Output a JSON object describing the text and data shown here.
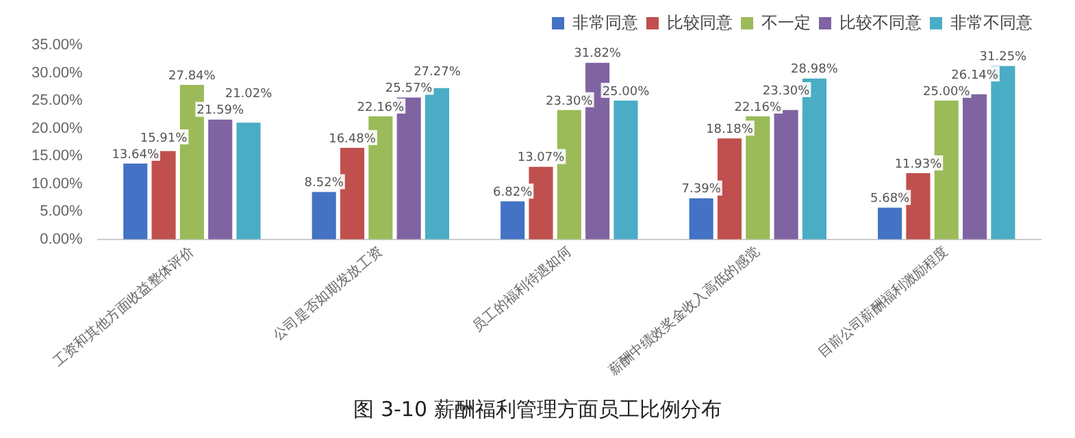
{
  "chart_data": {
    "type": "bar",
    "title": "图 3-10 薪酬福利管理方面员工比例分布",
    "categories": [
      "工资和其他方面收益整体评价",
      "公司是否如期发放工资",
      "员工的福利待遇如何",
      "薪酬中绩效奖金收入高低的感觉",
      "目前公司薪酬福利激励程度"
    ],
    "series": [
      {
        "name": "非常同意",
        "color": "#4472c4",
        "values": [
          13.64,
          8.52,
          6.82,
          7.39,
          5.68
        ],
        "value_labels": [
          "13.64%",
          "8.52%",
          "6.82%",
          "7.39%",
          "5.68%"
        ]
      },
      {
        "name": "比较同意",
        "color": "#c0504d",
        "values": [
          15.91,
          16.48,
          13.07,
          18.18,
          11.93
        ],
        "value_labels": [
          "15.91%",
          "16.48%",
          "13.07%",
          "18.18%",
          "11.93%"
        ]
      },
      {
        "name": "不一定",
        "color": "#9bbb59",
        "values": [
          27.84,
          22.16,
          23.3,
          22.16,
          25.0
        ],
        "value_labels": [
          "27.84%",
          "22.16%",
          "23.30%",
          "22.16%",
          "25.00%"
        ]
      },
      {
        "name": "比较不同意",
        "color": "#8064a2",
        "values": [
          21.59,
          25.57,
          31.82,
          23.3,
          26.14
        ],
        "value_labels": [
          "21.59%",
          "25.57%",
          "31.82%",
          "23.30%",
          "26.14%"
        ]
      },
      {
        "name": "非常不同意",
        "color": "#4bacc6",
        "values": [
          21.02,
          27.27,
          25.0,
          28.98,
          31.25
        ],
        "value_labels": [
          "21.02%",
          "27.27%",
          "25.00%",
          "28.98%",
          "31.25%"
        ]
      }
    ],
    "ylim": [
      0,
      35
    ],
    "yticks": [
      {
        "value": 0,
        "label": "0.00%"
      },
      {
        "value": 5,
        "label": "5.00%"
      },
      {
        "value": 10,
        "label": "10.00%"
      },
      {
        "value": 15,
        "label": "15.00%"
      },
      {
        "value": 20,
        "label": "20.00%"
      },
      {
        "value": 25,
        "label": "25.00%"
      },
      {
        "value": 30,
        "label": "30.00%"
      },
      {
        "value": 35,
        "label": "35.00%"
      }
    ],
    "grid": false,
    "legend": "top right"
  }
}
